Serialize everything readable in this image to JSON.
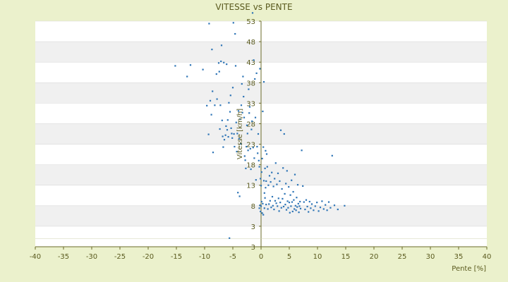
{
  "chart_data": {
    "type": "scatter",
    "title": "VITESSE vs PENTE",
    "xlabel": "Pente [%]",
    "ylabel": "Vitesse [km/h]",
    "xlim": [
      -40,
      40
    ],
    "x_step": 5,
    "ylim": [
      -2,
      53
    ],
    "y_tick_labels": [
      "53",
      "48",
      "43",
      "38",
      "33",
      "28",
      "23",
      "18",
      "13",
      "8",
      "3",
      "3"
    ],
    "grid": true,
    "legend": "none",
    "colors": {
      "point": "#2e75b6",
      "band": "#f0f0f0",
      "plot": "#ffffff",
      "axis": "#6b6b2a",
      "background": "#ebf1cc"
    },
    "series": [
      {
        "points": [
          [
            -15.2,
            42.1
          ],
          [
            -13.1,
            39.5
          ],
          [
            -12.5,
            42.3
          ],
          [
            -10.3,
            41.2
          ],
          [
            -9.6,
            32.4
          ],
          [
            -9.3,
            25.4
          ],
          [
            -9.2,
            52.4
          ],
          [
            -9.0,
            33.6
          ],
          [
            -8.8,
            30.2
          ],
          [
            -8.7,
            46.1
          ],
          [
            -8.6,
            35.9
          ],
          [
            -8.5,
            21.0
          ],
          [
            -8.2,
            32.5
          ],
          [
            -7.9,
            40.1
          ],
          [
            -7.8,
            34.0
          ],
          [
            -7.5,
            42.8
          ],
          [
            -7.4,
            40.7
          ],
          [
            -7.3,
            26.7
          ],
          [
            -7.2,
            32.5
          ],
          [
            -7.1,
            43.2
          ],
          [
            -7.0,
            47.1
          ],
          [
            -6.9,
            28.8
          ],
          [
            -6.8,
            24.9
          ],
          [
            -6.7,
            22.3
          ],
          [
            -6.6,
            42.9
          ],
          [
            -6.5,
            24.1
          ],
          [
            -6.3,
            25.2
          ],
          [
            -6.2,
            27.4
          ],
          [
            -6.1,
            42.5
          ],
          [
            -6.0,
            26.5
          ],
          [
            -5.9,
            28.9
          ],
          [
            -5.8,
            24.8
          ],
          [
            -5.7,
            33.1
          ],
          [
            -5.6,
            0.1
          ],
          [
            -5.5,
            30.9
          ],
          [
            -5.4,
            34.9
          ],
          [
            -5.3,
            26.9
          ],
          [
            -5.2,
            25.6
          ],
          [
            -5.1,
            24.5
          ],
          [
            -5.0,
            36.8
          ],
          [
            -4.9,
            52.6
          ],
          [
            -4.8,
            25.5
          ],
          [
            -4.7,
            22.4
          ],
          [
            -4.6,
            49.9
          ],
          [
            -4.5,
            42.1
          ],
          [
            -4.4,
            28.3
          ],
          [
            -4.3,
            21.2
          ],
          [
            -4.2,
            25.6
          ],
          [
            -4.1,
            11.2
          ],
          [
            -4.0,
            31.1
          ],
          [
            -3.9,
            24.3
          ],
          [
            -3.8,
            10.3
          ],
          [
            -3.7,
            29.1
          ],
          [
            -3.6,
            23.1
          ],
          [
            -3.5,
            32.5
          ],
          [
            -3.4,
            37.7
          ],
          [
            -3.3,
            30.7
          ],
          [
            -3.2,
            39.5
          ],
          [
            -3.1,
            34.6
          ],
          [
            -3.0,
            29.5
          ],
          [
            -2.9,
            20.1
          ],
          [
            -2.8,
            19.1
          ],
          [
            -2.7,
            17.1
          ],
          [
            -2.6,
            22.4
          ],
          [
            -2.5,
            27.6
          ],
          [
            -2.4,
            25.6
          ],
          [
            -2.3,
            21.5
          ],
          [
            -2.2,
            36.4
          ],
          [
            -2.1,
            30.6
          ],
          [
            -2.0,
            32.1
          ],
          [
            -1.9,
            21.9
          ],
          [
            -1.8,
            16.9
          ],
          [
            -1.7,
            26.6
          ],
          [
            -1.6,
            28.6
          ],
          [
            -1.5,
            55.0
          ],
          [
            -1.4,
            22.2
          ],
          [
            -1.3,
            43.5
          ],
          [
            -1.2,
            19.6
          ],
          [
            -1.1,
            38.9
          ],
          [
            -1.0,
            29.5
          ],
          [
            -0.9,
            14.3
          ],
          [
            -0.8,
            40.3
          ],
          [
            -0.7,
            22.4
          ],
          [
            -0.6,
            20.8
          ],
          [
            -0.5,
            25.5
          ],
          [
            -0.4,
            19.0
          ],
          [
            -0.3,
            17.5
          ],
          [
            -0.3,
            7.4
          ],
          [
            -0.2,
            41.4
          ],
          [
            -0.2,
            8.1
          ],
          [
            -0.1,
            14.6
          ],
          [
            -0.1,
            6.6
          ],
          [
            0.0,
            12.9
          ],
          [
            0.0,
            7.9
          ],
          [
            0.1,
            16.2
          ],
          [
            0.1,
            9.0
          ],
          [
            0.2,
            19.5
          ],
          [
            0.2,
            6.2
          ],
          [
            0.3,
            31.0
          ],
          [
            0.3,
            8.5
          ],
          [
            0.4,
            22.3
          ],
          [
            0.4,
            5.8
          ],
          [
            0.5,
            14.1
          ],
          [
            0.5,
            38.2
          ],
          [
            0.6,
            11.1
          ],
          [
            0.6,
            7.4
          ],
          [
            0.7,
            17.1
          ],
          [
            0.7,
            9.9
          ],
          [
            0.8,
            21.4
          ],
          [
            0.8,
            12.4
          ],
          [
            0.9,
            8.3
          ],
          [
            0.9,
            14.0
          ],
          [
            1.0,
            20.6
          ],
          [
            1.1,
            17.5
          ],
          [
            1.2,
            7.2
          ],
          [
            1.3,
            13.0
          ],
          [
            1.4,
            8.4
          ],
          [
            1.5,
            15.3
          ],
          [
            1.6,
            9.2
          ],
          [
            1.7,
            13.8
          ],
          [
            1.8,
            7.6
          ],
          [
            1.9,
            16.1
          ],
          [
            2.0,
            10.2
          ],
          [
            2.1,
            8.0
          ],
          [
            2.2,
            12.7
          ],
          [
            2.3,
            7.1
          ],
          [
            2.4,
            14.6
          ],
          [
            2.5,
            9.2
          ],
          [
            2.6,
            18.4
          ],
          [
            2.7,
            8.6
          ],
          [
            2.8,
            13.2
          ],
          [
            2.9,
            7.9
          ],
          [
            3.0,
            15.9
          ],
          [
            3.1,
            9.8
          ],
          [
            3.2,
            6.7
          ],
          [
            3.3,
            14.0
          ],
          [
            3.4,
            8.8
          ],
          [
            3.5,
            26.4
          ],
          [
            3.6,
            7.5
          ],
          [
            3.7,
            12.1
          ],
          [
            3.8,
            9.7
          ],
          [
            3.9,
            17.2
          ],
          [
            4.0,
            7.8
          ],
          [
            4.1,
            25.5
          ],
          [
            4.2,
            10.9
          ],
          [
            4.3,
            8.3
          ],
          [
            4.4,
            13.4
          ],
          [
            4.5,
            7.0
          ],
          [
            4.6,
            16.5
          ],
          [
            4.7,
            9.1
          ],
          [
            4.8,
            7.5
          ],
          [
            4.9,
            12.6
          ],
          [
            5.0,
            8.8
          ],
          [
            5.1,
            6.3
          ],
          [
            5.2,
            10.6
          ],
          [
            5.3,
            7.9
          ],
          [
            5.4,
            14.2
          ],
          [
            5.5,
            8.9
          ],
          [
            5.6,
            6.6
          ],
          [
            5.7,
            11.4
          ],
          [
            5.8,
            9.4
          ],
          [
            5.9,
            7.2
          ],
          [
            6.0,
            15.6
          ],
          [
            6.1,
            8.0
          ],
          [
            6.2,
            6.9
          ],
          [
            6.3,
            10.0
          ],
          [
            6.4,
            7.7
          ],
          [
            6.5,
            13.1
          ],
          [
            6.6,
            8.5
          ],
          [
            6.7,
            6.4
          ],
          [
            6.8,
            7.9
          ],
          [
            6.9,
            9.0
          ],
          [
            7.0,
            7.3
          ],
          [
            7.2,
            21.5
          ],
          [
            7.4,
            12.8
          ],
          [
            7.6,
            8.9
          ],
          [
            7.8,
            7.1
          ],
          [
            8.0,
            9.4
          ],
          [
            8.2,
            7.8
          ],
          [
            8.4,
            6.5
          ],
          [
            8.6,
            9.0
          ],
          [
            8.8,
            7.4
          ],
          [
            9.0,
            8.4
          ],
          [
            9.3,
            6.9
          ],
          [
            9.6,
            7.9
          ],
          [
            9.9,
            8.8
          ],
          [
            10.2,
            6.7
          ],
          [
            10.5,
            7.6
          ],
          [
            10.8,
            9.1
          ],
          [
            11.1,
            7.2
          ],
          [
            11.4,
            8.2
          ],
          [
            11.7,
            6.9
          ],
          [
            12.0,
            8.9
          ],
          [
            12.3,
            7.5
          ],
          [
            12.6,
            20.2
          ],
          [
            13.0,
            8.1
          ],
          [
            13.6,
            7.1
          ],
          [
            14.8,
            8.0
          ]
        ]
      }
    ]
  }
}
